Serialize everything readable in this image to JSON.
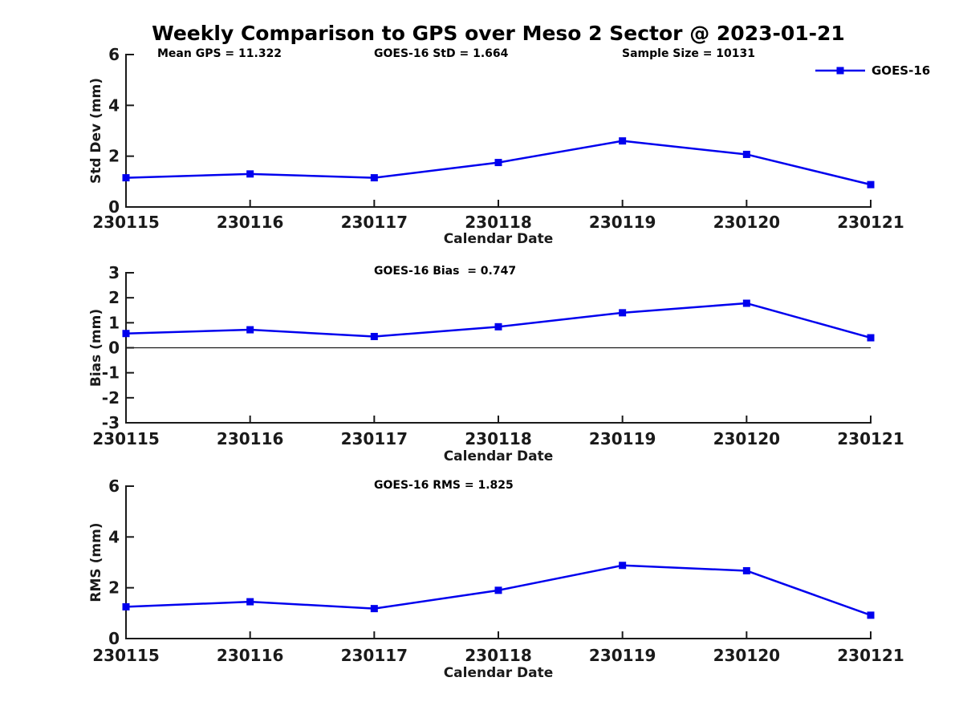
{
  "figure": {
    "title": "Weekly Comparison to GPS over Meso 2 Sector @ 2023-01-21"
  },
  "colors": {
    "series_blue": "#0000EE",
    "axis": "#1a1a1a",
    "text": "#000000",
    "background": "#ffffff"
  },
  "chart_data": [
    {
      "id": "stddev",
      "type": "line",
      "ylabel": "Std Dev (mm)",
      "xlabel": "Calendar Date",
      "categories": [
        "230115",
        "230116",
        "230117",
        "230118",
        "230119",
        "230120",
        "230121"
      ],
      "series": [
        {
          "name": "GOES-16",
          "color": "#0000EE",
          "marker": "square",
          "values": [
            1.15,
            1.3,
            1.15,
            1.75,
            2.6,
            2.07,
            0.88
          ]
        }
      ],
      "ylim": [
        0,
        6
      ],
      "yticks": [
        0,
        2,
        4,
        6
      ],
      "grid": false,
      "zero_line": false,
      "annotations": [
        "Mean GPS = 11.322",
        "GOES-16 StD = 1.664",
        "Sample Size = 10131"
      ],
      "legend": {
        "visible": true,
        "label": "GOES-16",
        "position": "top-right"
      }
    },
    {
      "id": "bias",
      "type": "line",
      "ylabel": "Bias (mm)",
      "xlabel": "Calendar Date",
      "categories": [
        "230115",
        "230116",
        "230117",
        "230118",
        "230119",
        "230120",
        "230121"
      ],
      "series": [
        {
          "name": "GOES-16",
          "color": "#0000EE",
          "marker": "square",
          "values": [
            0.57,
            0.72,
            0.45,
            0.84,
            1.4,
            1.78,
            0.4
          ]
        }
      ],
      "ylim": [
        -3,
        3
      ],
      "yticks": [
        3,
        2,
        1,
        0,
        -1,
        -2,
        -3
      ],
      "grid": false,
      "zero_line": true,
      "annotations": [
        "GOES-16 Bias  = 0.747"
      ],
      "legend": {
        "visible": false,
        "label": "GOES-16",
        "position": "top-right"
      }
    },
    {
      "id": "rms",
      "type": "line",
      "ylabel": "RMS (mm)",
      "xlabel": "Calendar Date",
      "categories": [
        "230115",
        "230116",
        "230117",
        "230118",
        "230119",
        "230120",
        "230121"
      ],
      "series": [
        {
          "name": "GOES-16",
          "color": "#0000EE",
          "marker": "square",
          "values": [
            1.25,
            1.45,
            1.18,
            1.9,
            2.88,
            2.67,
            0.92
          ]
        }
      ],
      "ylim": [
        0,
        6
      ],
      "yticks": [
        0,
        2,
        4,
        6
      ],
      "grid": false,
      "zero_line": false,
      "annotations": [
        "GOES-16 RMS = 1.825"
      ],
      "legend": {
        "visible": false,
        "label": "GOES-16",
        "position": "top-right"
      }
    }
  ]
}
